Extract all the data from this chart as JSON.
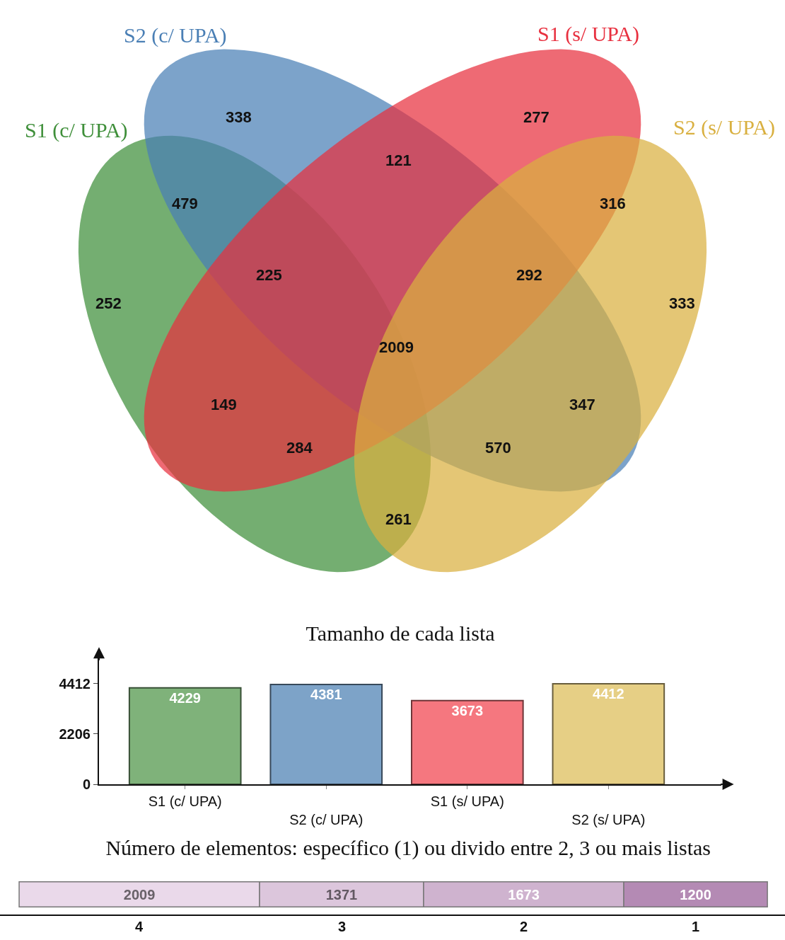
{
  "chart_data": [
    {
      "type": "other",
      "categories": [
        "S1 (c/ UPA)",
        "S2 (c/ UPA)",
        "S1 (s/ UPA)",
        "S2 (s/ UPA)"
      ],
      "colors": [
        "#3f8f3a",
        "#4a7fb5",
        "#e8303f",
        "#d9b040"
      ],
      "annotations": [
        "338",
        "277",
        "252",
        "333",
        "479",
        "121",
        "316",
        "225",
        "2009",
        "292",
        "149",
        "347",
        "284",
        "570",
        "261"
      ]
    },
    {
      "type": "bar",
      "title": "Tamanho de cada lista",
      "categories": [
        "S1 (c/ UPA)",
        "S2 (c/ UPA)",
        "S1 (s/ UPA)",
        "S2 (s/ UPA)"
      ],
      "values": [
        4229,
        4381,
        3673,
        4412
      ],
      "colors": [
        "#7fb27a",
        "#7da3c8",
        "#f5777f",
        "#e6cf85"
      ],
      "ylim": [
        0,
        5900
      ],
      "yticks": [
        0,
        2206,
        4412
      ],
      "data_labels": true,
      "grid": false,
      "legend": false
    },
    {
      "type": "bar",
      "orientation": "horizontal",
      "stacked": true,
      "title": "Número de elementos: específico (1) ou divido entre 2, 3 ou mais listas",
      "categories": [
        null
      ],
      "xlim": [
        -160,
        6400
      ],
      "tick_labels": false,
      "data_labels": true,
      "grid": false,
      "legend": false,
      "series": [
        {
          "name": "4",
          "color": "#ead9ea",
          "values": [
            2009
          ]
        },
        {
          "name": "3",
          "color": "#dcc6dc",
          "values": [
            1371
          ]
        },
        {
          "name": "2",
          "color": "#cfb3cf",
          "values": [
            1673
          ]
        },
        {
          "name": "1",
          "color": "#b48ab4",
          "values": [
            1200
          ]
        }
      ]
    }
  ]
}
